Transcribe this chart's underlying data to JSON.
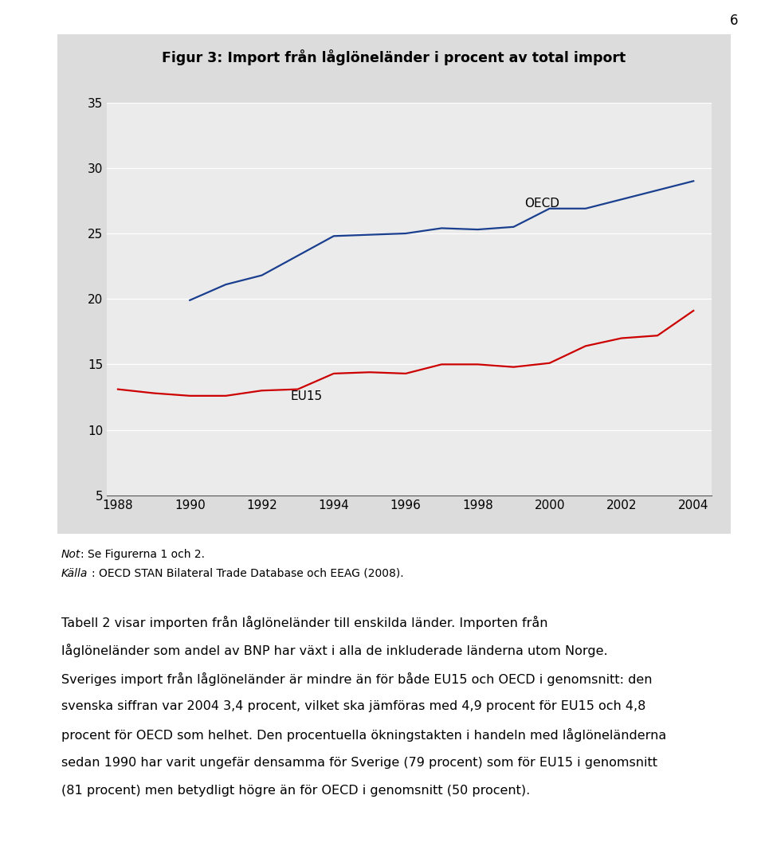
{
  "title": "Figur 3: Import från låglöneländer i procent av total import",
  "title_fontsize": 12.5,
  "background_color": "#dcdcdc",
  "plot_bg_color": "#ebebeb",
  "oecd_color": "#1a3f8f",
  "eu15_color": "#cc0000",
  "years": [
    1988,
    1989,
    1990,
    1991,
    1992,
    1993,
    1994,
    1995,
    1996,
    1997,
    1998,
    1999,
    2000,
    2001,
    2002,
    2003,
    2004
  ],
  "oecd_values": [
    null,
    null,
    19.9,
    21.1,
    21.8,
    23.3,
    24.8,
    24.9,
    25.0,
    25.4,
    25.3,
    25.5,
    26.9,
    26.9,
    27.6,
    28.3,
    29.0
  ],
  "eu15_values": [
    13.1,
    12.8,
    12.6,
    12.6,
    13.0,
    13.1,
    14.3,
    14.4,
    14.3,
    15.0,
    15.0,
    14.8,
    15.1,
    16.4,
    17.0,
    17.2,
    19.1
  ],
  "ylim": [
    5,
    35
  ],
  "yticks": [
    5,
    10,
    15,
    20,
    25,
    30,
    35
  ],
  "xlim": [
    1988,
    2004
  ],
  "xticks": [
    1988,
    1990,
    1992,
    1994,
    1996,
    1998,
    2000,
    2002,
    2004
  ],
  "oecd_label": "OECD",
  "eu15_label": "EU15",
  "note_italic": "Not",
  "note_text": ": Se Figurerna 1 och 2.",
  "source_italic": "Källa",
  "source_text": ": OECD STAN Bilateral Trade Database och EEAG (2008).",
  "body_paragraph": "Tabell 2 visar importen från låglöneländer till enskilda länder. Importen från låglöneländer som andel av BNP har växt i alla de inkluderade länderna utom Norge. Sveriges import från låglöneländer är mindre än för både EU15 och OECD i genomsnitt: den svenska siffran var 2004 3,4 procent, vilket ska jämföras med 4,9 procent för EU15 och 4,8 procent för OECD som helhet. Den procentuella ökningstakten i handeln med låglöneländerna sedan 1990 har varit ungefär densamma för Sverige (79 procent) som för EU15 i genomsnitt (81 procent) men betydligt högre än för OECD i genomsnitt (50 procent).",
  "page_number": "6",
  "line_width": 1.6
}
